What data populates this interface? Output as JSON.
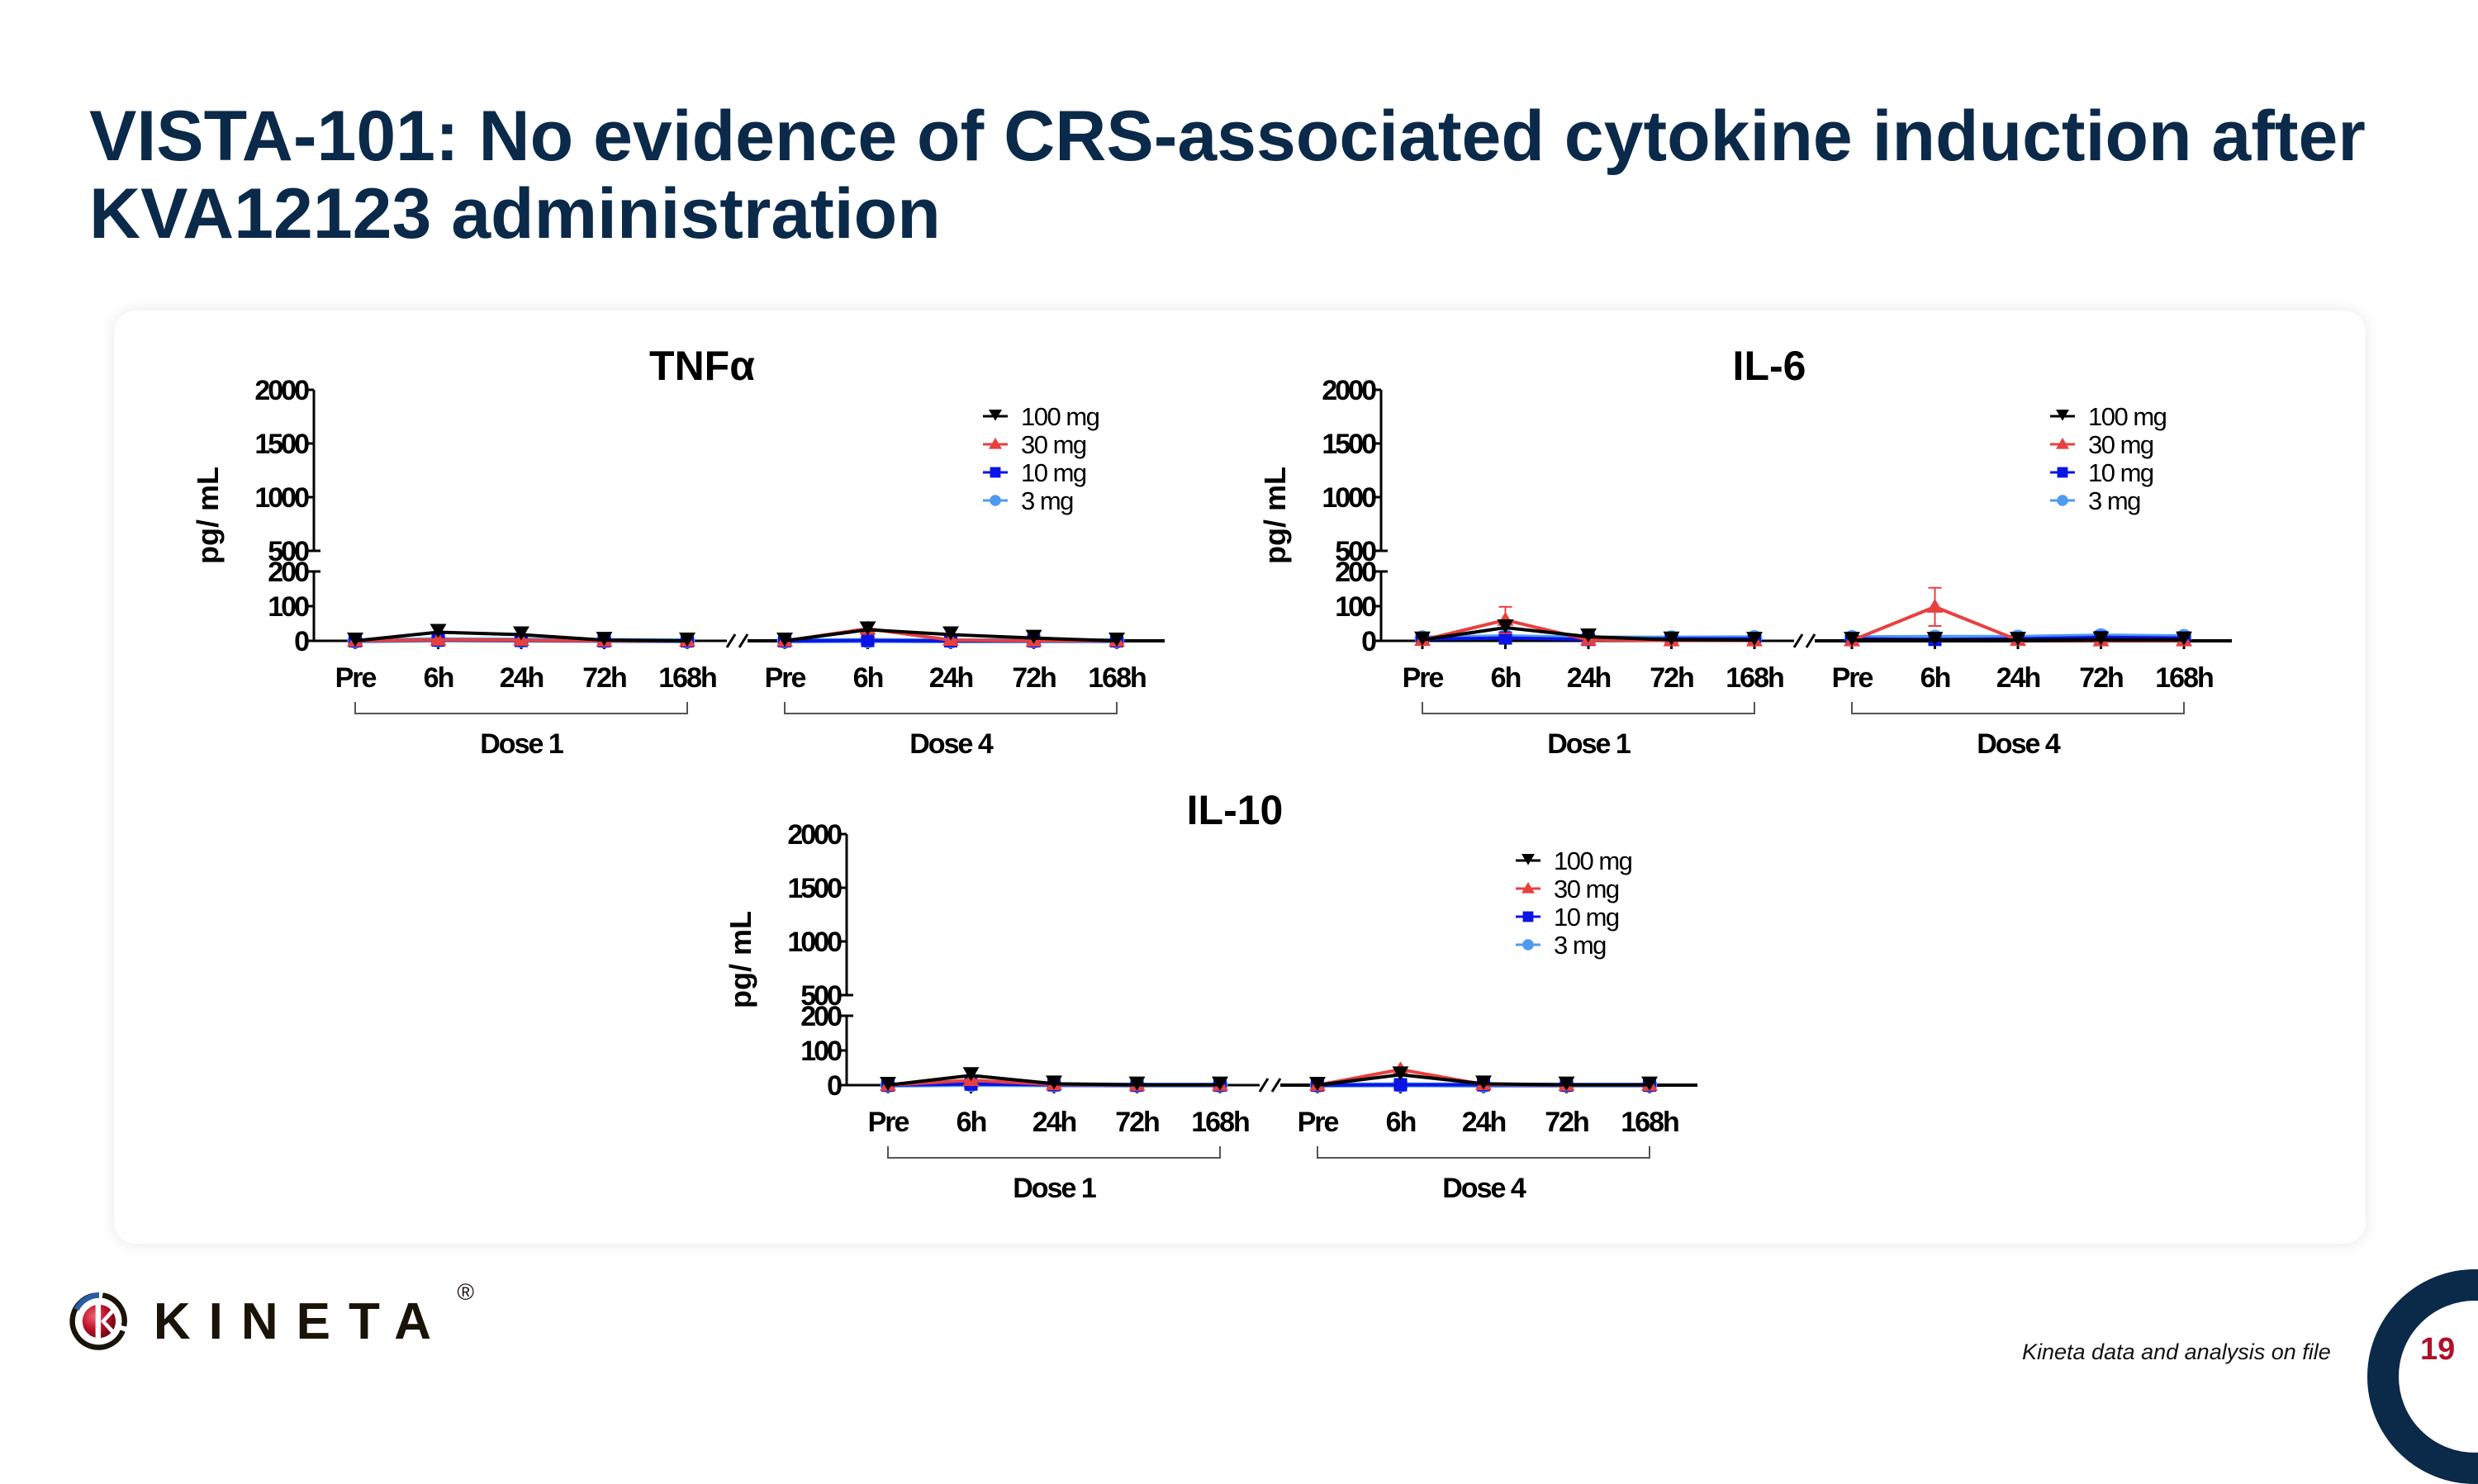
{
  "slide": {
    "title": "VISTA-101: No evidence of CRS-associated cytokine induction after KVA12123 administration",
    "source_note": "Kineta data and analysis on file",
    "page_number": "19",
    "logo": {
      "wordmark": "KINETA",
      "registered": "®"
    }
  },
  "colors": {
    "title": "#0b2a4a",
    "series_100mg": "#000000",
    "series_30mg": "#e8403f",
    "series_10mg": "#0a14e6",
    "series_3mg": "#4f9af0",
    "page_number": "#b0102a"
  },
  "chart_data": [
    {
      "id": "tnfa",
      "type": "line",
      "title": "TNFα",
      "ylabel": "pg/ mL",
      "xlabel": "",
      "y_axis_segments": {
        "lower": [
          0,
          200
        ],
        "upper": [
          500,
          2000
        ]
      },
      "y_ticks_lower": [
        "0",
        "100",
        "200"
      ],
      "y_ticks_upper": [
        "500",
        "1000",
        "1500",
        "2000"
      ],
      "categories": [
        "Pre",
        "6h",
        "24h",
        "72h",
        "168h",
        "Pre",
        "6h",
        "24h",
        "72h",
        "168h"
      ],
      "groups": [
        {
          "label": "Dose 1",
          "range": [
            0,
            4
          ]
        },
        {
          "label": "Dose 4",
          "range": [
            5,
            9
          ]
        }
      ],
      "legend": [
        "100 mg",
        "30 mg",
        "10 mg",
        "3 mg"
      ],
      "legend_position": "upper-right",
      "grid": false,
      "series": [
        {
          "name": "100 mg",
          "values": [
            0,
            25,
            18,
            2,
            0,
            0,
            32,
            18,
            8,
            0
          ],
          "errors": [
            0,
            0,
            0,
            0,
            0,
            0,
            0,
            0,
            0,
            0
          ]
        },
        {
          "name": "30 mg",
          "values": [
            0,
            3,
            2,
            0,
            0,
            0,
            35,
            2,
            0,
            0
          ],
          "errors": [
            0,
            0,
            0,
            0,
            0,
            0,
            15,
            0,
            0,
            0
          ]
        },
        {
          "name": "10 mg",
          "values": [
            0,
            2,
            1,
            0,
            0,
            0,
            1,
            0,
            0,
            0
          ],
          "errors": [
            0,
            0,
            0,
            0,
            0,
            0,
            0,
            0,
            0,
            0
          ]
        },
        {
          "name": "3 mg",
          "values": [
            0,
            3,
            2,
            1,
            0,
            0,
            1,
            0,
            0,
            0
          ],
          "errors": [
            0,
            0,
            0,
            0,
            0,
            0,
            0,
            0,
            0,
            0
          ]
        }
      ]
    },
    {
      "id": "il6",
      "type": "line",
      "title": "IL-6",
      "ylabel": "pg/ mL",
      "xlabel": "",
      "y_axis_segments": {
        "lower": [
          0,
          200
        ],
        "upper": [
          500,
          2000
        ]
      },
      "y_ticks_lower": [
        "0",
        "100",
        "200"
      ],
      "y_ticks_upper": [
        "500",
        "1000",
        "1500",
        "2000"
      ],
      "categories": [
        "Pre",
        "6h",
        "24h",
        "72h",
        "168h",
        "Pre",
        "6h",
        "24h",
        "72h",
        "168h"
      ],
      "groups": [
        {
          "label": "Dose 1",
          "range": [
            0,
            4
          ]
        },
        {
          "label": "Dose 4",
          "range": [
            5,
            9
          ]
        }
      ],
      "legend": [
        "100 mg",
        "30 mg",
        "10 mg",
        "3 mg"
      ],
      "legend_position": "upper-right",
      "grid": false,
      "series": [
        {
          "name": "100 mg",
          "values": [
            3,
            38,
            12,
            3,
            2,
            2,
            2,
            2,
            3,
            3
          ],
          "errors": [
            0,
            0,
            0,
            0,
            0,
            0,
            0,
            0,
            0,
            0
          ]
        },
        {
          "name": "30 mg",
          "values": [
            2,
            60,
            3,
            1,
            1,
            1,
            98,
            2,
            1,
            1
          ],
          "errors": [
            0,
            38,
            0,
            0,
            0,
            0,
            55,
            0,
            0,
            0
          ]
        },
        {
          "name": "10 mg",
          "values": [
            5,
            8,
            4,
            6,
            6,
            6,
            4,
            6,
            10,
            8
          ],
          "errors": [
            0,
            0,
            0,
            0,
            0,
            0,
            0,
            0,
            0,
            0
          ]
        },
        {
          "name": "3 mg",
          "values": [
            8,
            12,
            8,
            8,
            9,
            9,
            10,
            10,
            14,
            12
          ],
          "errors": [
            0,
            0,
            0,
            0,
            0,
            0,
            0,
            0,
            0,
            0
          ]
        }
      ]
    },
    {
      "id": "il10",
      "type": "line",
      "title": "IL-10",
      "ylabel": "pg/ mL",
      "xlabel": "",
      "y_axis_segments": {
        "lower": [
          0,
          200
        ],
        "upper": [
          500,
          2000
        ]
      },
      "y_ticks_lower": [
        "0",
        "100",
        "200"
      ],
      "y_ticks_upper": [
        "500",
        "1000",
        "1500",
        "2000"
      ],
      "categories": [
        "Pre",
        "6h",
        "24h",
        "72h",
        "168h",
        "Pre",
        "6h",
        "24h",
        "72h",
        "168h"
      ],
      "groups": [
        {
          "label": "Dose 1",
          "range": [
            0,
            4
          ]
        },
        {
          "label": "Dose 4",
          "range": [
            5,
            9
          ]
        }
      ],
      "legend": [
        "100 mg",
        "30 mg",
        "10 mg",
        "3 mg"
      ],
      "legend_position": "upper-right",
      "grid": false,
      "series": [
        {
          "name": "100 mg",
          "values": [
            0,
            28,
            4,
            1,
            1,
            0,
            30,
            4,
            1,
            1
          ],
          "errors": [
            0,
            0,
            0,
            0,
            0,
            0,
            0,
            0,
            0,
            0
          ]
        },
        {
          "name": "30 mg",
          "values": [
            0,
            14,
            2,
            0,
            0,
            0,
            45,
            2,
            0,
            0
          ],
          "errors": [
            0,
            0,
            0,
            0,
            0,
            0,
            0,
            0,
            0,
            0
          ]
        },
        {
          "name": "10 mg",
          "values": [
            0,
            3,
            1,
            0,
            0,
            0,
            1,
            1,
            0,
            0
          ],
          "errors": [
            0,
            0,
            0,
            0,
            0,
            0,
            0,
            0,
            0,
            0
          ]
        },
        {
          "name": "3 mg",
          "values": [
            0,
            2,
            1,
            0,
            0,
            0,
            1,
            0,
            0,
            0
          ],
          "errors": [
            0,
            0,
            0,
            0,
            0,
            0,
            0,
            0,
            0,
            0
          ]
        }
      ]
    }
  ]
}
